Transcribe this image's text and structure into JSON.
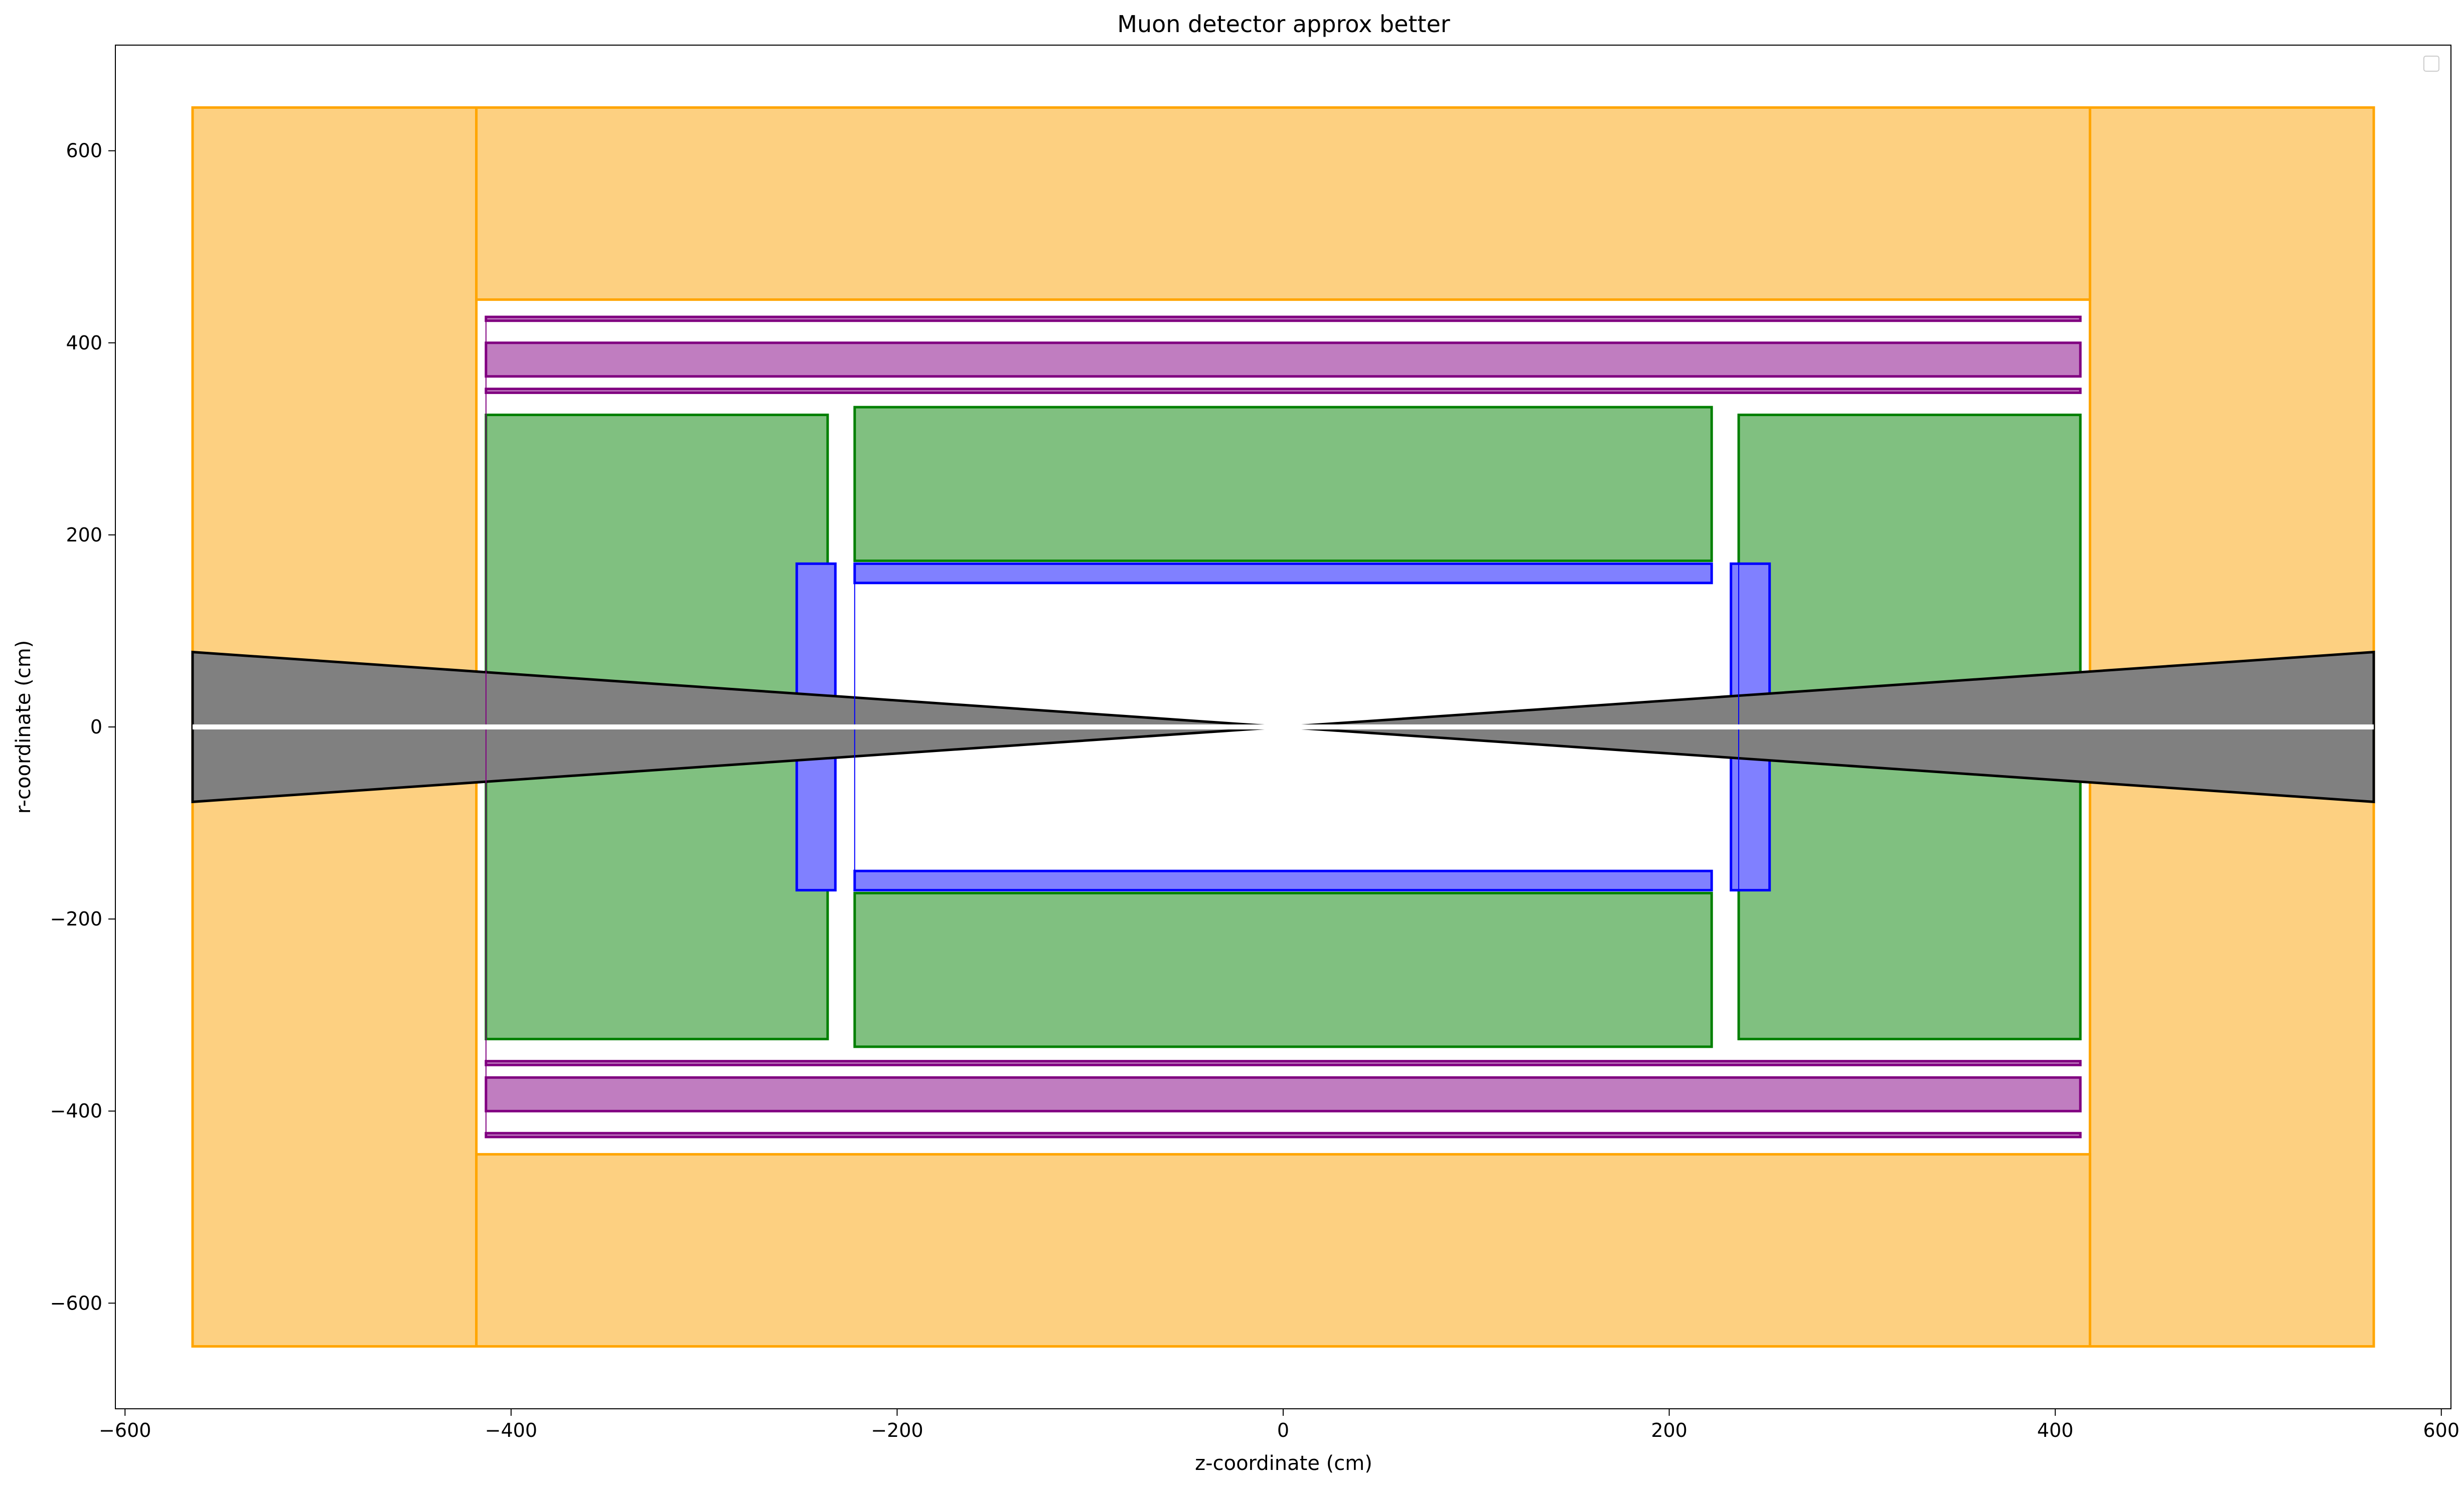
{
  "chart_data": {
    "type": "area",
    "title": "Muon detector approx better",
    "xlabel": "z-coordinate (cm)",
    "ylabel": "r-coordinate (cm)",
    "xlim": [
      -605,
      605
    ],
    "ylim": [
      -710,
      710
    ],
    "x_ticks": [
      -600,
      -400,
      -200,
      0,
      200,
      400,
      600
    ],
    "y_ticks": [
      -600,
      -400,
      -200,
      0,
      200,
      400,
      600
    ],
    "x_tick_labels": [
      "−600",
      "−400",
      "−200",
      "0",
      "200",
      "400",
      "600"
    ],
    "y_tick_labels": [
      "−600",
      "−400",
      "−200",
      "0",
      "200",
      "400",
      "600"
    ],
    "grid": false,
    "legend": {
      "location": "upper right",
      "entries": []
    },
    "colors": {
      "return_yoke_fill": "#fdd081",
      "return_yoke_edge": "#ffa500",
      "muon_chamber_fill": "#c07dc0",
      "muon_chamber_edge": "#800080",
      "hcal_fill": "#80c080",
      "hcal_edge": "#008000",
      "ecal_fill": "#8080ff",
      "ecal_edge": "#0000ff",
      "cone_fill": "#808080",
      "cone_edge": "#000000"
    },
    "shapes": [
      {
        "group": "return_yoke",
        "points": [
          [
            -565,
            -645
          ],
          [
            -418,
            -645
          ],
          [
            -418,
            645
          ],
          [
            -565,
            645
          ]
        ]
      },
      {
        "group": "return_yoke",
        "points": [
          [
            418,
            -645
          ],
          [
            565,
            -645
          ],
          [
            565,
            645
          ],
          [
            418,
            645
          ]
        ]
      },
      {
        "group": "return_yoke",
        "points": [
          [
            -418,
            445
          ],
          [
            418,
            445
          ],
          [
            418,
            645
          ],
          [
            -418,
            645
          ]
        ]
      },
      {
        "group": "return_yoke",
        "points": [
          [
            -418,
            -645
          ],
          [
            418,
            -645
          ],
          [
            418,
            -445
          ],
          [
            -418,
            -445
          ]
        ]
      },
      {
        "group": "muon_chamber",
        "points": [
          [
            -413,
            423
          ],
          [
            413,
            423
          ],
          [
            413,
            427
          ],
          [
            -413,
            427
          ]
        ]
      },
      {
        "group": "muon_chamber",
        "points": [
          [
            -413,
            365
          ],
          [
            413,
            365
          ],
          [
            413,
            400
          ],
          [
            -413,
            400
          ]
        ]
      },
      {
        "group": "muon_chamber",
        "points": [
          [
            -413,
            348
          ],
          [
            413,
            348
          ],
          [
            413,
            352
          ],
          [
            -413,
            352
          ]
        ]
      },
      {
        "group": "muon_chamber",
        "points": [
          [
            -413,
            -352
          ],
          [
            413,
            -352
          ],
          [
            413,
            -348
          ],
          [
            -413,
            -348
          ]
        ]
      },
      {
        "group": "muon_chamber",
        "points": [
          [
            -413,
            -400
          ],
          [
            413,
            -400
          ],
          [
            413,
            -365
          ],
          [
            -413,
            -365
          ]
        ]
      },
      {
        "group": "muon_chamber",
        "points": [
          [
            -413,
            -427
          ],
          [
            413,
            -427
          ],
          [
            413,
            -423
          ],
          [
            -413,
            -423
          ]
        ]
      },
      {
        "group": "hcal",
        "points": [
          [
            -413,
            -325
          ],
          [
            -236,
            -325
          ],
          [
            -236,
            325
          ],
          [
            -413,
            325
          ]
        ]
      },
      {
        "group": "hcal",
        "points": [
          [
            236,
            -325
          ],
          [
            413,
            -325
          ],
          [
            413,
            325
          ],
          [
            236,
            325
          ]
        ]
      },
      {
        "group": "hcal",
        "points": [
          [
            -222,
            173
          ],
          [
            222,
            173
          ],
          [
            222,
            333
          ],
          [
            -222,
            333
          ]
        ]
      },
      {
        "group": "hcal",
        "points": [
          [
            -222,
            -333
          ],
          [
            222,
            -333
          ],
          [
            222,
            -173
          ],
          [
            -222,
            -173
          ]
        ]
      },
      {
        "group": "ecal",
        "points": [
          [
            -222,
            150
          ],
          [
            222,
            150
          ],
          [
            222,
            170
          ],
          [
            -222,
            170
          ]
        ]
      },
      {
        "group": "ecal",
        "points": [
          [
            -222,
            -170
          ],
          [
            222,
            -170
          ],
          [
            222,
            -150
          ],
          [
            -222,
            -150
          ]
        ]
      },
      {
        "group": "ecal",
        "points": [
          [
            -252,
            -170
          ],
          [
            -232,
            -170
          ],
          [
            -232,
            170
          ],
          [
            -252,
            170
          ]
        ]
      },
      {
        "group": "ecal",
        "points": [
          [
            232,
            -170
          ],
          [
            252,
            -170
          ],
          [
            252,
            170
          ],
          [
            232,
            170
          ]
        ]
      },
      {
        "group": "cone",
        "points": [
          [
            0,
            0
          ],
          [
            -565,
            78
          ],
          [
            -565,
            -78
          ]
        ]
      },
      {
        "group": "cone",
        "points": [
          [
            0,
            0
          ],
          [
            565,
            78
          ],
          [
            565,
            -78
          ]
        ]
      }
    ],
    "thin_lines": [
      {
        "group": "muon_chamber",
        "points": [
          [
            -413,
            -427
          ],
          [
            -413,
            427
          ]
        ]
      },
      {
        "group": "ecal",
        "points": [
          [
            -222,
            -170
          ],
          [
            -222,
            170
          ]
        ]
      },
      {
        "group": "ecal",
        "points": [
          [
            236,
            -170
          ],
          [
            236,
            170
          ]
        ]
      }
    ],
    "beam_axis": {
      "color": "#ffffff",
      "points": [
        [
          -565,
          0
        ],
        [
          565,
          0
        ]
      ]
    }
  }
}
